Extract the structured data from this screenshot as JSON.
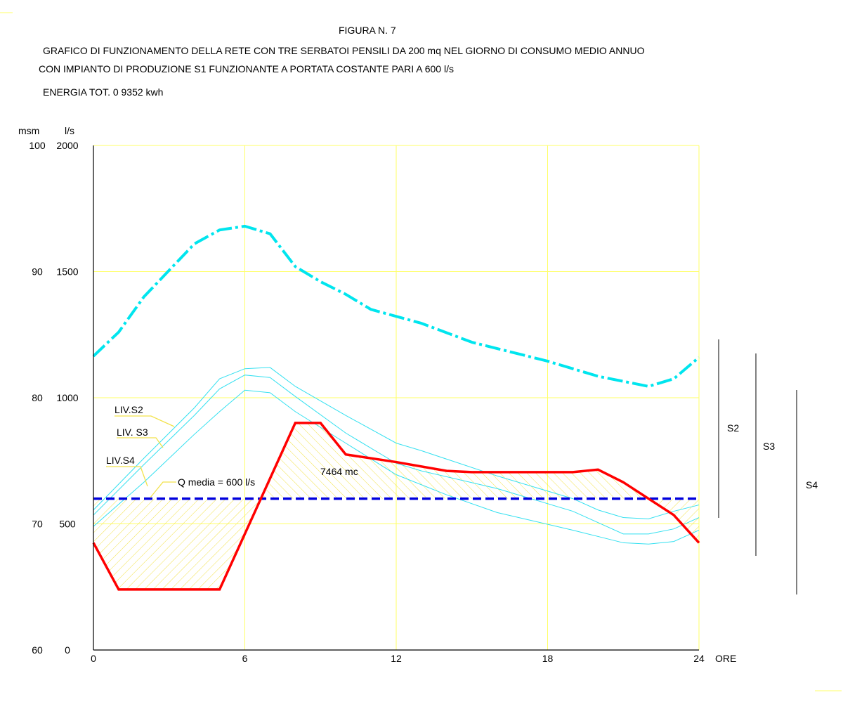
{
  "header": {
    "figure": "FIGURA N. 7",
    "line1": "GRAFICO DI FUNZIONAMENTO DELLA RETE CON TRE SERBATOI PENSILI DA 200 mq NEL GIORNO DI CONSUMO MEDIO ANNUO",
    "line2": "CON IMPIANTO DI PRODUZIONE S1 FUNZIONANTE A PORTATA COSTANTE PARI A 600 l/s",
    "energy": "ENERGIA TOT. 0 9352 kwh"
  },
  "colors": {
    "grid": "#ffff66",
    "axis": "#000000",
    "flow": "#ff0000",
    "mean": "#0000dd",
    "upper": "#00e5ee",
    "levels": "#33e0f0",
    "hatch": "#f2e24a"
  },
  "chart_data": {
    "type": "line",
    "x_axis": {
      "label": "ORE",
      "min": 0,
      "max": 24,
      "ticks": [
        "0",
        "6",
        "12",
        "18",
        "24"
      ]
    },
    "y_axis_left": {
      "unit": "msm",
      "min": 60,
      "max": 100,
      "ticks": [
        {
          "label": "100",
          "value": 100
        },
        {
          "label": "90",
          "value": 90
        },
        {
          "label": "80",
          "value": 80
        },
        {
          "label": "70",
          "value": 70
        },
        {
          "label": "60",
          "value": 60
        }
      ]
    },
    "y_axis_right": {
      "unit": "l/s",
      "min": 0,
      "max": 2000,
      "ticks": [
        {
          "label": "2000",
          "value": 2000
        },
        {
          "label": "1500",
          "value": 1500
        },
        {
          "label": "1000",
          "value": 1000
        },
        {
          "label": "500",
          "value": 500
        },
        {
          "label": "0",
          "value": 0
        }
      ]
    },
    "grid": true,
    "series": [
      {
        "key": "flow",
        "axis": "l/s",
        "x": [
          0,
          1,
          5,
          8,
          9,
          10,
          12,
          14,
          15,
          19,
          20,
          21,
          23,
          24
        ],
        "y": [
          425,
          240,
          240,
          900,
          900,
          775,
          745,
          710,
          705,
          705,
          715,
          665,
          535,
          425
        ]
      },
      {
        "key": "upper",
        "axis": "l/s",
        "x": [
          0,
          1,
          2,
          4,
          5,
          6,
          7,
          8,
          9,
          10,
          11,
          13,
          15,
          18,
          20,
          22,
          23,
          24
        ],
        "y": [
          1165,
          1260,
          1400,
          1610,
          1665,
          1680,
          1650,
          1520,
          1460,
          1410,
          1350,
          1295,
          1220,
          1145,
          1085,
          1045,
          1075,
          1160
        ]
      },
      {
        "key": "liv_s2",
        "name": "LIV.S2",
        "axis": "l/s",
        "x": [
          0,
          2,
          4,
          5,
          6,
          7,
          8,
          10,
          12,
          13,
          16,
          19,
          20,
          21,
          22,
          23,
          24
        ],
        "y": [
          555,
          760,
          960,
          1075,
          1115,
          1120,
          1045,
          930,
          820,
          790,
          690,
          600,
          555,
          525,
          520,
          550,
          575
        ]
      },
      {
        "key": "liv_s3",
        "name": "LIV. S3",
        "axis": "l/s",
        "x": [
          0,
          2,
          4,
          5,
          6,
          7,
          8,
          10,
          12,
          13,
          16,
          19,
          20,
          21,
          22,
          23,
          24
        ],
        "y": [
          535,
          735,
          930,
          1035,
          1090,
          1080,
          1005,
          860,
          740,
          710,
          640,
          550,
          505,
          460,
          460,
          480,
          525
        ]
      },
      {
        "key": "liv_s4",
        "name": "LIV.S4",
        "axis": "l/s",
        "x": [
          0,
          2,
          4,
          5,
          6,
          7,
          8,
          10,
          12,
          14,
          16,
          19,
          20,
          21,
          22,
          23,
          24
        ],
        "y": [
          490,
          665,
          855,
          945,
          1030,
          1020,
          945,
          820,
          695,
          615,
          545,
          475,
          450,
          425,
          420,
          430,
          475
        ]
      },
      {
        "key": "mean",
        "axis": "l/s",
        "x": [
          0,
          24
        ],
        "y": [
          600,
          600
        ]
      }
    ],
    "annotations": {
      "qmedia": "Q media = 600 l/s",
      "volume": "7464 mc",
      "liv_s2": "LIV.S2",
      "liv_s3": "LIV. S3",
      "liv_s4": "LIV.S4",
      "s2": "S2",
      "s3": "S3",
      "s4": "S4"
    }
  }
}
